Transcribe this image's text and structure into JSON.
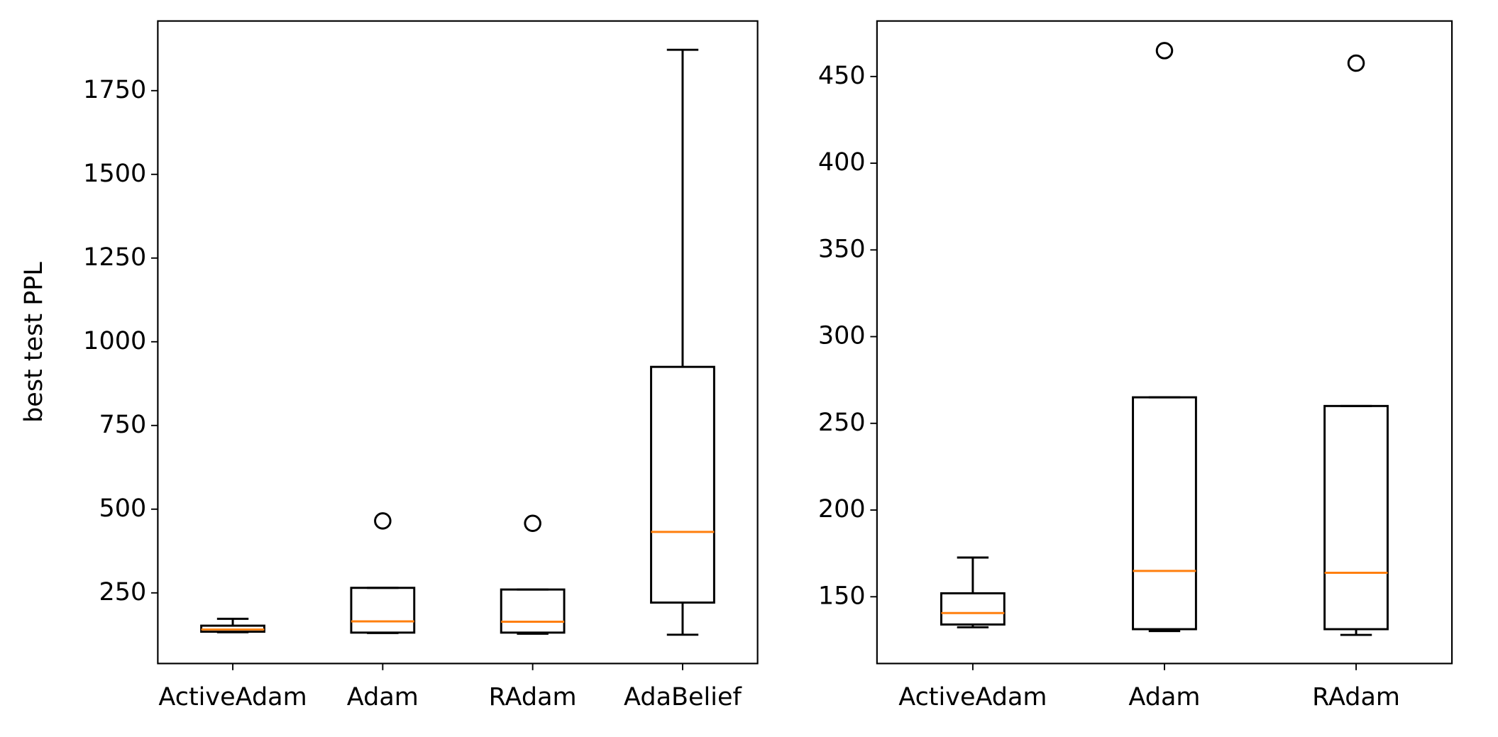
{
  "chart_data": [
    {
      "type": "box",
      "ylabel": "best test PPL",
      "categories": [
        "ActiveAdam",
        "Adam",
        "RAdam",
        "AdaBelief"
      ],
      "whislo": [
        132.4,
        130.2,
        128,
        125
      ],
      "q1": [
        134,
        131.3,
        131.3,
        221
      ],
      "med": [
        140.6,
        164.9,
        163.8,
        432
      ],
      "q3": [
        152,
        265,
        260,
        925
      ],
      "whishi": [
        172.6,
        265,
        260,
        1872
      ],
      "fliers": [
        [],
        [
          464.9
        ],
        [
          457.7
        ],
        []
      ],
      "ylim": [
        39,
        1958
      ],
      "yticks": [
        250,
        500,
        750,
        1000,
        1250,
        1500,
        1750
      ],
      "box_color": "#000000",
      "median_color": "#ff7f0e"
    },
    {
      "type": "box",
      "categories": [
        "ActiveAdam",
        "Adam",
        "RAdam"
      ],
      "whislo": [
        132.4,
        130.2,
        128
      ],
      "q1": [
        134,
        131.3,
        131.3
      ],
      "med": [
        140.6,
        164.9,
        163.8
      ],
      "q3": [
        152,
        265,
        260
      ],
      "whishi": [
        172.6,
        265,
        260
      ],
      "fliers": [
        [],
        [
          464.9
        ],
        [
          457.7
        ]
      ],
      "ylim": [
        111.5,
        482
      ],
      "yticks": [
        150,
        200,
        250,
        300,
        350,
        400,
        450
      ],
      "box_color": "#000000",
      "median_color": "#ff7f0e"
    }
  ]
}
